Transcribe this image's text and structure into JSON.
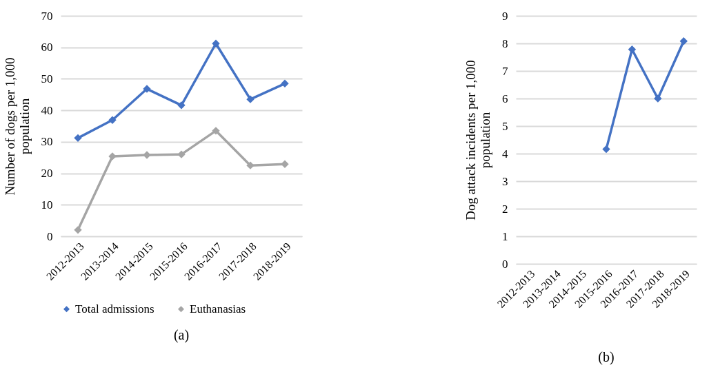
{
  "chart_data": [
    {
      "type": "line",
      "categories": [
        "2012-2013",
        "2013-2014",
        "2014-2015",
        "2015-2016",
        "2016-2017",
        "2017-2018",
        "2018-2019"
      ],
      "ylabel": "Number of dogs per 1,000 population",
      "ylim": [
        0,
        70
      ],
      "yticks": [
        0,
        10,
        20,
        30,
        40,
        50,
        60,
        70
      ],
      "grid": "y",
      "marker": "diamond",
      "legend": "bottom",
      "annotations": [
        "(a)"
      ],
      "series": [
        {
          "name": "Total admissions",
          "color": "#4472c4",
          "values": [
            31.2,
            36.9,
            46.8,
            41.6,
            61.2,
            43.5,
            48.5
          ]
        },
        {
          "name": "Euthanasias",
          "color": "#a5a5a5",
          "values": [
            2.0,
            25.4,
            25.8,
            26.0,
            33.5,
            22.5,
            22.9
          ]
        }
      ]
    },
    {
      "type": "line",
      "categories": [
        "2012-2013",
        "2013-2014",
        "2014-2015",
        "2015-2016",
        "2016-2017",
        "2017-2018",
        "2018-2019"
      ],
      "ylabel": "Dog attack incidents per 1,000 population",
      "ylim": [
        0,
        9
      ],
      "yticks": [
        0,
        1,
        2,
        3,
        4,
        5,
        6,
        7,
        8,
        9
      ],
      "grid": "y",
      "marker": "diamond",
      "annotations": [
        "(b)"
      ],
      "series": [
        {
          "color": "#4472c4",
          "values": [
            null,
            null,
            null,
            4.16,
            7.78,
            6.0,
            8.08
          ]
        }
      ]
    }
  ]
}
